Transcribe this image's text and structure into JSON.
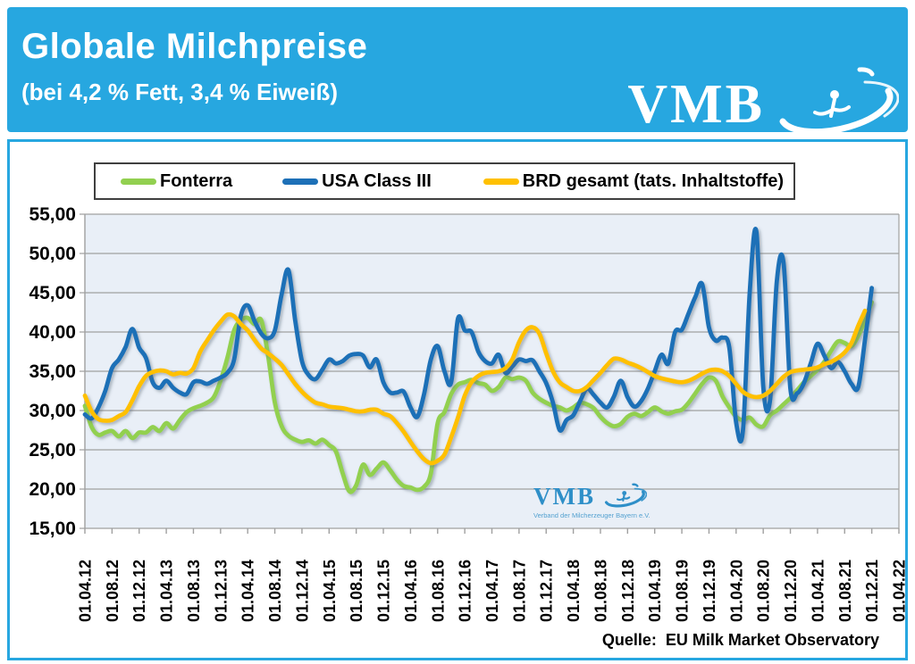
{
  "header": {
    "title": "Globale Milchpreise",
    "subtitle": "(bei 4,2 % Fett, 3,4 % Eiweiß)",
    "logo_text": "VMB",
    "bg_color": "#27a7e0"
  },
  "watermark": {
    "text": "VMB",
    "subtext": "Verband der Milcherzeuger Bayern e.V."
  },
  "source": {
    "label": "Quelle:  EU Milk Market Observatory"
  },
  "chart_data": {
    "type": "line",
    "title": "Globale Milchpreise (bei 4,2 % Fett, 3,4 % Eiweiß)",
    "xlabel": "",
    "ylabel": "",
    "ylim": [
      15,
      55
    ],
    "ytick_step": 5,
    "ytick_labels": [
      "55,00",
      "50,00",
      "45,00",
      "40,00",
      "35,00",
      "30,00",
      "25,00",
      "20,00",
      "15,00"
    ],
    "xtick_labels": [
      "01.04.12",
      "01.08.12",
      "01.12.12",
      "01.04.13",
      "01.08.13",
      "01.12.13",
      "01.04.14",
      "01.08.14",
      "01.12.14",
      "01.04.15",
      "01.08.15",
      "01.12.15",
      "01.04.16",
      "01.08.16",
      "01.12.16",
      "01.04.17",
      "01.08.17",
      "01.12.17",
      "01.04.18",
      "01.08.18",
      "01.12.18",
      "01.04.19",
      "01.08.19",
      "01.12.19",
      "01.04.20",
      "01.08.20",
      "01.12.20",
      "01.04.21",
      "01.08.21",
      "01.12.21",
      "01.04.22"
    ],
    "x_unit": "months, first data point 01.04.12, one point per month",
    "grid": true,
    "plot_bg": "#e9eff7",
    "grid_color": "#a0a0a0",
    "legend_position": "top",
    "series": [
      {
        "name": "Fonterra",
        "color": "#92d050",
        "values": [
          30.6,
          27.9,
          26.9,
          27.2,
          27.4,
          26.7,
          27.4,
          26.5,
          27.2,
          27.2,
          27.9,
          27.4,
          28.4,
          27.7,
          28.8,
          29.8,
          30.3,
          30.6,
          31.0,
          31.7,
          33.8,
          36.7,
          40.2,
          41.5,
          41.8,
          41.0,
          41.5,
          37.0,
          31.0,
          28.0,
          26.8,
          26.3,
          26.0,
          26.2,
          25.8,
          26.3,
          25.6,
          24.8,
          22.0,
          19.7,
          20.5,
          23.1,
          21.8,
          22.6,
          23.4,
          22.4,
          21.2,
          20.4,
          20.2,
          19.9,
          20.3,
          22.0,
          28.4,
          29.8,
          32.1,
          33.3,
          33.6,
          33.9,
          33.5,
          33.3,
          32.5,
          33.0,
          34.2,
          34.0,
          34.2,
          33.8,
          32.3,
          31.5,
          31.0,
          30.6,
          30.4,
          30.0,
          30.4,
          31.0,
          30.8,
          30.3,
          29.2,
          28.4,
          28.0,
          28.3,
          29.2,
          29.6,
          29.3,
          29.8,
          30.4,
          29.9,
          29.6,
          29.9,
          30.1,
          31.0,
          32.2,
          33.4,
          34.2,
          33.8,
          31.8,
          30.4,
          29.2,
          28.8,
          29.1,
          28.2,
          28.0,
          29.4,
          30.0,
          30.8,
          31.6,
          32.6,
          33.6,
          34.4,
          35.2,
          36.2,
          37.6,
          38.8,
          38.6,
          38.2,
          39.5,
          41.5,
          43.8
        ]
      },
      {
        "name": "USA Class III",
        "color": "#1d70b7",
        "values": [
          29.5,
          29.0,
          30.4,
          32.5,
          35.4,
          36.5,
          38.1,
          40.4,
          38.0,
          36.7,
          33.6,
          32.9,
          33.8,
          32.9,
          32.3,
          32.1,
          33.6,
          33.7,
          33.4,
          33.8,
          34.2,
          34.8,
          36.5,
          42.1,
          43.4,
          41.4,
          39.8,
          39.2,
          40.2,
          44.8,
          47.9,
          41.5,
          36.3,
          34.5,
          34.0,
          35.2,
          36.5,
          36.0,
          36.3,
          37.0,
          37.2,
          37.0,
          35.5,
          36.5,
          33.6,
          32.3,
          32.3,
          32.4,
          30.4,
          29.2,
          32.1,
          36.5,
          38.2,
          35.0,
          33.6,
          41.7,
          40.2,
          40.0,
          37.5,
          36.3,
          36.0,
          37.1,
          34.8,
          35.6,
          36.5,
          36.3,
          36.4,
          35.0,
          33.5,
          31.0,
          27.5,
          28.8,
          29.4,
          31.2,
          32.8,
          32.0,
          31.0,
          30.4,
          31.8,
          33.8,
          31.7,
          30.5,
          31.2,
          32.8,
          35.0,
          37.1,
          36.0,
          40.0,
          40.3,
          42.4,
          44.5,
          46.1,
          40.6,
          38.9,
          39.3,
          38.0,
          28.5,
          27.4,
          45.0,
          52.7,
          33.0,
          31.3,
          46.5,
          48.8,
          32.8,
          32.2,
          33.5,
          36.0,
          38.5,
          37.0,
          35.4,
          36.2,
          35.0,
          33.4,
          33.0,
          39.0,
          45.6
        ]
      },
      {
        "name": "BRD gesamt (tats. Inhaltstoffe)",
        "color": "#ffc000",
        "values": [
          31.9,
          29.9,
          28.9,
          28.7,
          28.8,
          29.3,
          29.8,
          31.3,
          33.1,
          34.4,
          34.9,
          35.1,
          35.0,
          34.6,
          34.8,
          34.7,
          35.4,
          37.5,
          38.9,
          40.2,
          41.3,
          42.2,
          42.0,
          41.0,
          40.2,
          39.0,
          37.9,
          37.3,
          36.6,
          35.8,
          34.6,
          33.4,
          32.4,
          31.6,
          31.0,
          30.8,
          30.5,
          30.4,
          30.3,
          30.1,
          29.9,
          29.9,
          30.1,
          30.1,
          29.6,
          29.3,
          28.4,
          27.3,
          26.0,
          24.8,
          23.8,
          23.3,
          23.6,
          24.4,
          26.6,
          29.1,
          31.9,
          33.6,
          34.4,
          34.8,
          34.9,
          35.0,
          35.4,
          36.5,
          38.7,
          40.2,
          40.6,
          39.8,
          37.3,
          35.0,
          33.6,
          33.0,
          32.5,
          32.5,
          33.0,
          33.9,
          34.8,
          35.8,
          36.6,
          36.5,
          36.1,
          35.8,
          35.4,
          34.9,
          34.4,
          34.1,
          33.9,
          33.7,
          33.6,
          33.8,
          34.2,
          34.7,
          35.1,
          35.2,
          35.0,
          34.4,
          33.4,
          32.4,
          31.9,
          31.7,
          31.9,
          32.5,
          33.4,
          34.3,
          34.9,
          35.1,
          35.2,
          35.3,
          35.5,
          35.9,
          36.2,
          36.7,
          37.4,
          38.6,
          40.8,
          42.7
        ]
      }
    ]
  }
}
